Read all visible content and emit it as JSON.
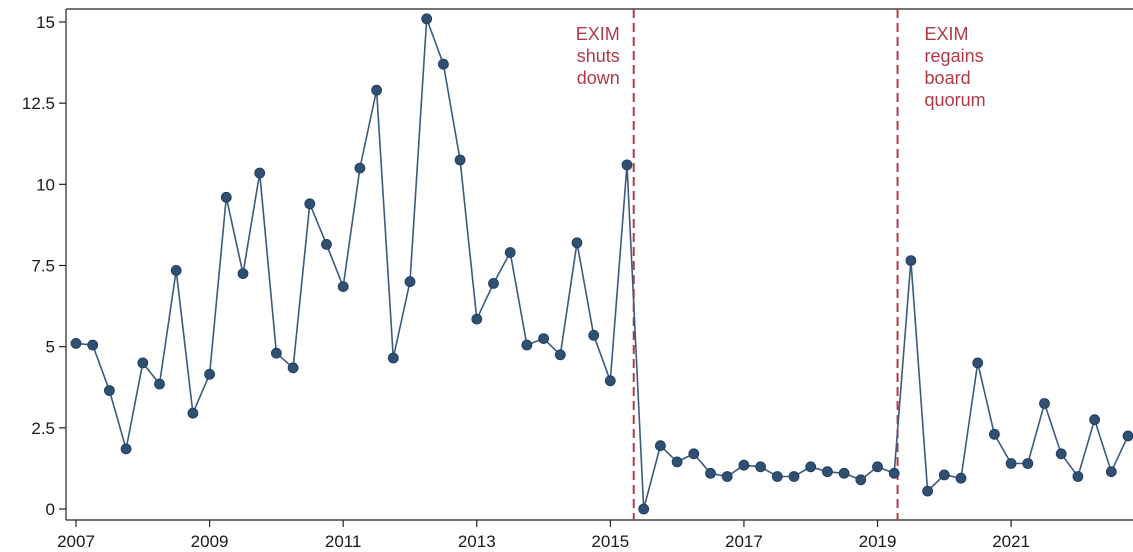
{
  "chart_data": {
    "type": "line",
    "title": "",
    "xlabel": "",
    "ylabel": "",
    "xlim": [
      2007,
      2022.75
    ],
    "ylim": [
      0,
      15
    ],
    "grid": false,
    "x_ticks": [
      "2007",
      "2009",
      "2011",
      "2013",
      "2015",
      "2017",
      "2019",
      "2021"
    ],
    "y_ticks": [
      "0",
      "2.5",
      "5",
      "7.5",
      "10",
      "12.5",
      "15"
    ],
    "colors": {
      "series": "#3b5a7e",
      "marker": "#2f4f73",
      "annotation": "#b03a48"
    },
    "series": [
      {
        "x": [
          2007.0,
          2007.25,
          2007.5,
          2007.75,
          2008.0,
          2008.25,
          2008.5,
          2008.75,
          2009.0,
          2009.25,
          2009.5,
          2009.75,
          2010.0,
          2010.25,
          2010.5,
          2010.75,
          2011.0,
          2011.25,
          2011.5,
          2011.75,
          2012.0,
          2012.25,
          2012.5,
          2012.75,
          2013.0,
          2013.25,
          2013.5,
          2013.75,
          2014.0,
          2014.25,
          2014.5,
          2014.75,
          2015.0,
          2015.25,
          2015.5,
          2015.75,
          2016.0,
          2016.25,
          2016.5,
          2016.75,
          2017.0,
          2017.25,
          2017.5,
          2017.75,
          2018.0,
          2018.25,
          2018.5,
          2018.75,
          2019.0,
          2019.25,
          2019.5,
          2019.75,
          2020.0,
          2020.25,
          2020.5,
          2020.75,
          2021.0,
          2021.25,
          2021.5,
          2021.75,
          2022.0,
          2022.25,
          2022.5,
          2022.75
        ],
        "values": [
          5.1,
          5.05,
          3.65,
          1.85,
          4.5,
          3.85,
          7.35,
          2.95,
          4.15,
          9.6,
          7.25,
          10.35,
          4.8,
          4.35,
          9.4,
          8.15,
          6.85,
          10.5,
          12.9,
          4.65,
          7.0,
          15.1,
          13.7,
          10.75,
          5.85,
          6.95,
          7.9,
          5.05,
          5.25,
          4.75,
          8.2,
          5.35,
          3.95,
          10.6,
          0.0,
          1.95,
          1.45,
          1.7,
          1.1,
          1.0,
          1.35,
          1.3,
          1.0,
          1.0,
          1.3,
          1.15,
          1.1,
          0.9,
          1.3,
          1.1,
          7.65,
          0.55,
          1.05,
          0.95,
          4.5,
          2.3,
          1.4,
          1.4,
          3.25,
          1.7,
          1.0,
          2.75,
          1.15,
          2.25
        ]
      }
    ],
    "annotations": [
      {
        "x": 2015.35,
        "lines": [
          "EXIM",
          "shuts",
          "down"
        ],
        "align": "right"
      },
      {
        "x": 2019.3,
        "lines": [
          "EXIM",
          "regains",
          "board",
          "quorum"
        ],
        "align": "left"
      }
    ]
  }
}
